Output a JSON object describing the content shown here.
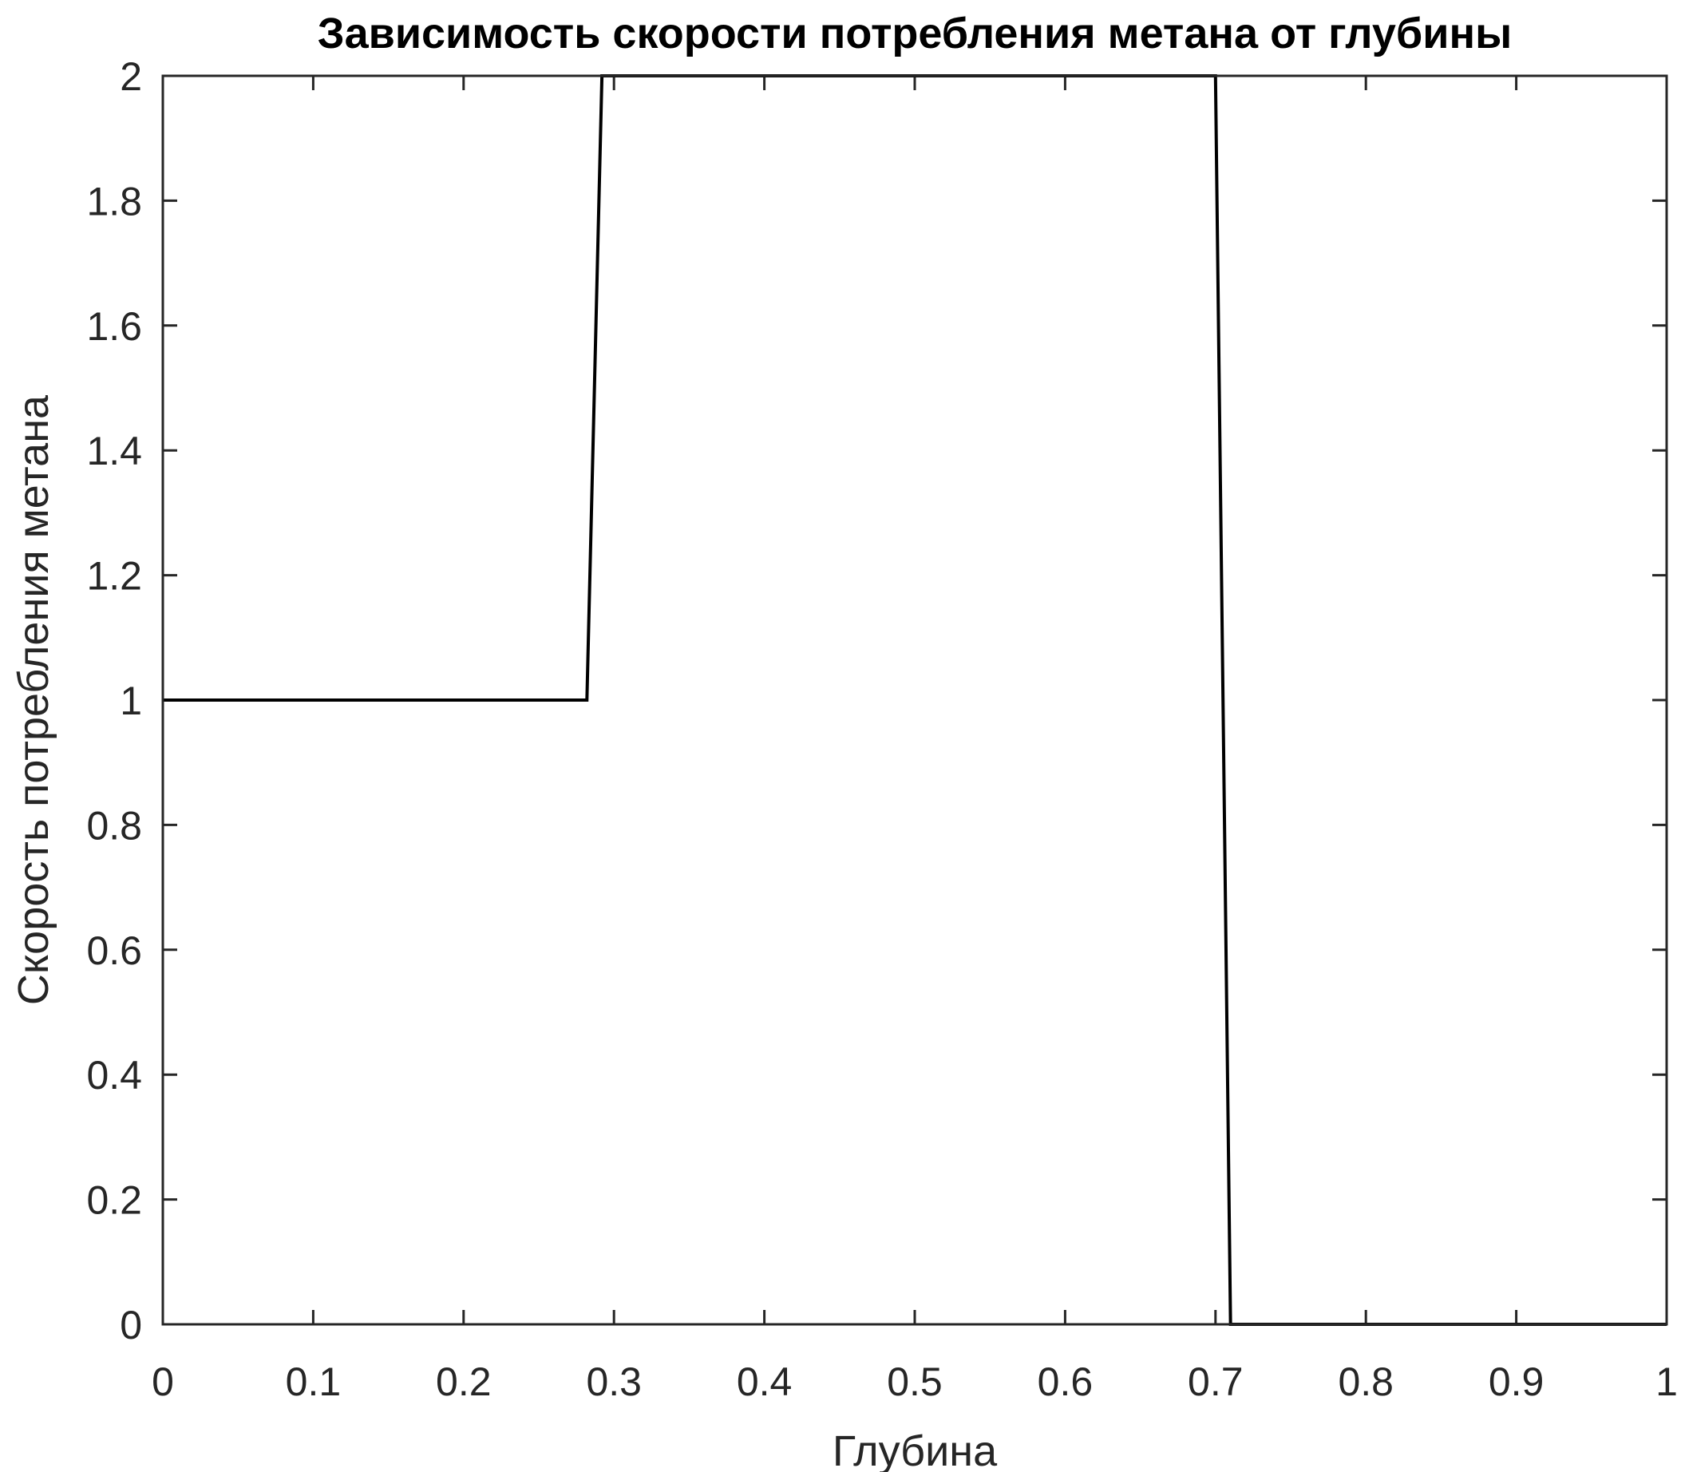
{
  "chart_data": {
    "type": "line",
    "title": "Зависимость скорости потребления метана от глубины",
    "xlabel": "Глубина",
    "ylabel": "Скорость потребления метана",
    "xlim": [
      0,
      1
    ],
    "ylim": [
      0,
      2
    ],
    "xticks": [
      "0",
      "0.1",
      "0.2",
      "0.3",
      "0.4",
      "0.5",
      "0.6",
      "0.7",
      "0.8",
      "0.9",
      "1"
    ],
    "yticks": [
      "0",
      "0.2",
      "0.4",
      "0.6",
      "0.8",
      "1",
      "1.2",
      "1.4",
      "1.6",
      "1.8",
      "2"
    ],
    "grid": false,
    "box": true,
    "series": [
      {
        "x": [
          0,
          0.282,
          0.292,
          0.7,
          0.71,
          1
        ],
        "y": [
          1,
          1,
          2,
          2,
          0,
          0
        ],
        "color": "#000000"
      }
    ]
  }
}
